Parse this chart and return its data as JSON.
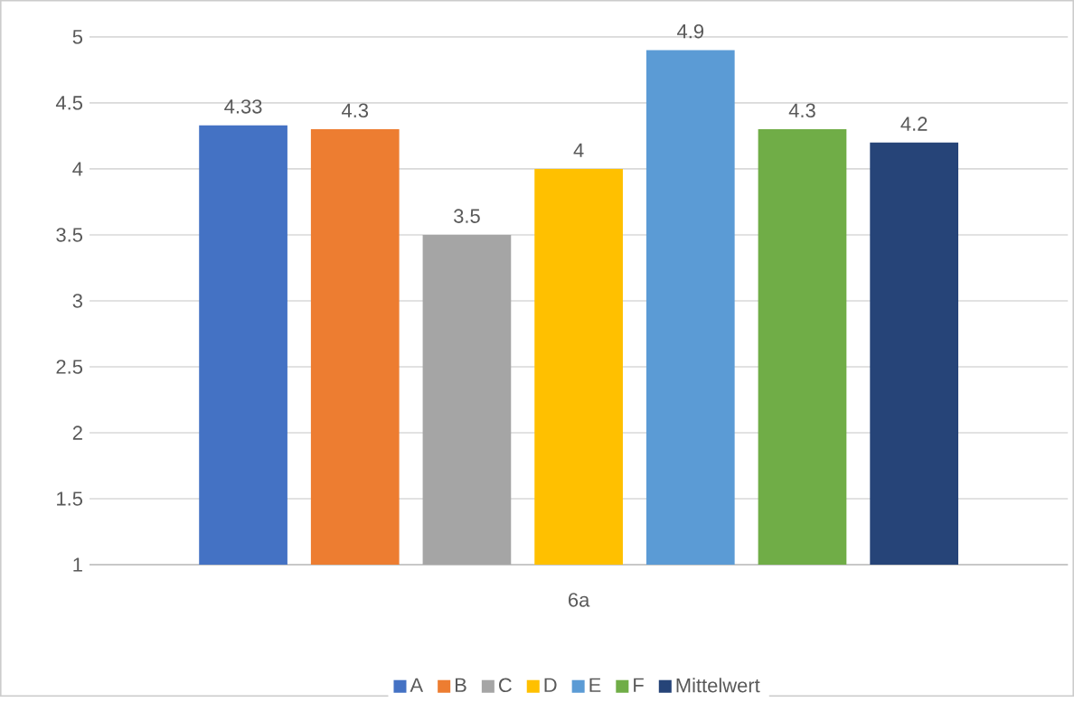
{
  "chart_data": {
    "type": "bar",
    "categories": [
      "6a"
    ],
    "series": [
      {
        "name": "A",
        "color": "#4472c4",
        "values": [
          4.33
        ]
      },
      {
        "name": "B",
        "color": "#ed7d31",
        "values": [
          4.3
        ]
      },
      {
        "name": "C",
        "color": "#a5a5a5",
        "values": [
          3.5
        ]
      },
      {
        "name": "D",
        "color": "#ffc000",
        "values": [
          4
        ]
      },
      {
        "name": "E",
        "color": "#5b9bd5",
        "values": [
          4.9
        ]
      },
      {
        "name": "F",
        "color": "#70ad47",
        "values": [
          4.3
        ]
      },
      {
        "name": "Mittelwert",
        "color": "#264478",
        "values": [
          4.2
        ]
      }
    ],
    "ylim": [
      1,
      5
    ],
    "yticks": [
      1,
      1.5,
      2,
      2.5,
      3,
      3.5,
      4,
      4.5,
      5
    ],
    "grid": "y",
    "legend": "bottom",
    "data_labels": true
  }
}
